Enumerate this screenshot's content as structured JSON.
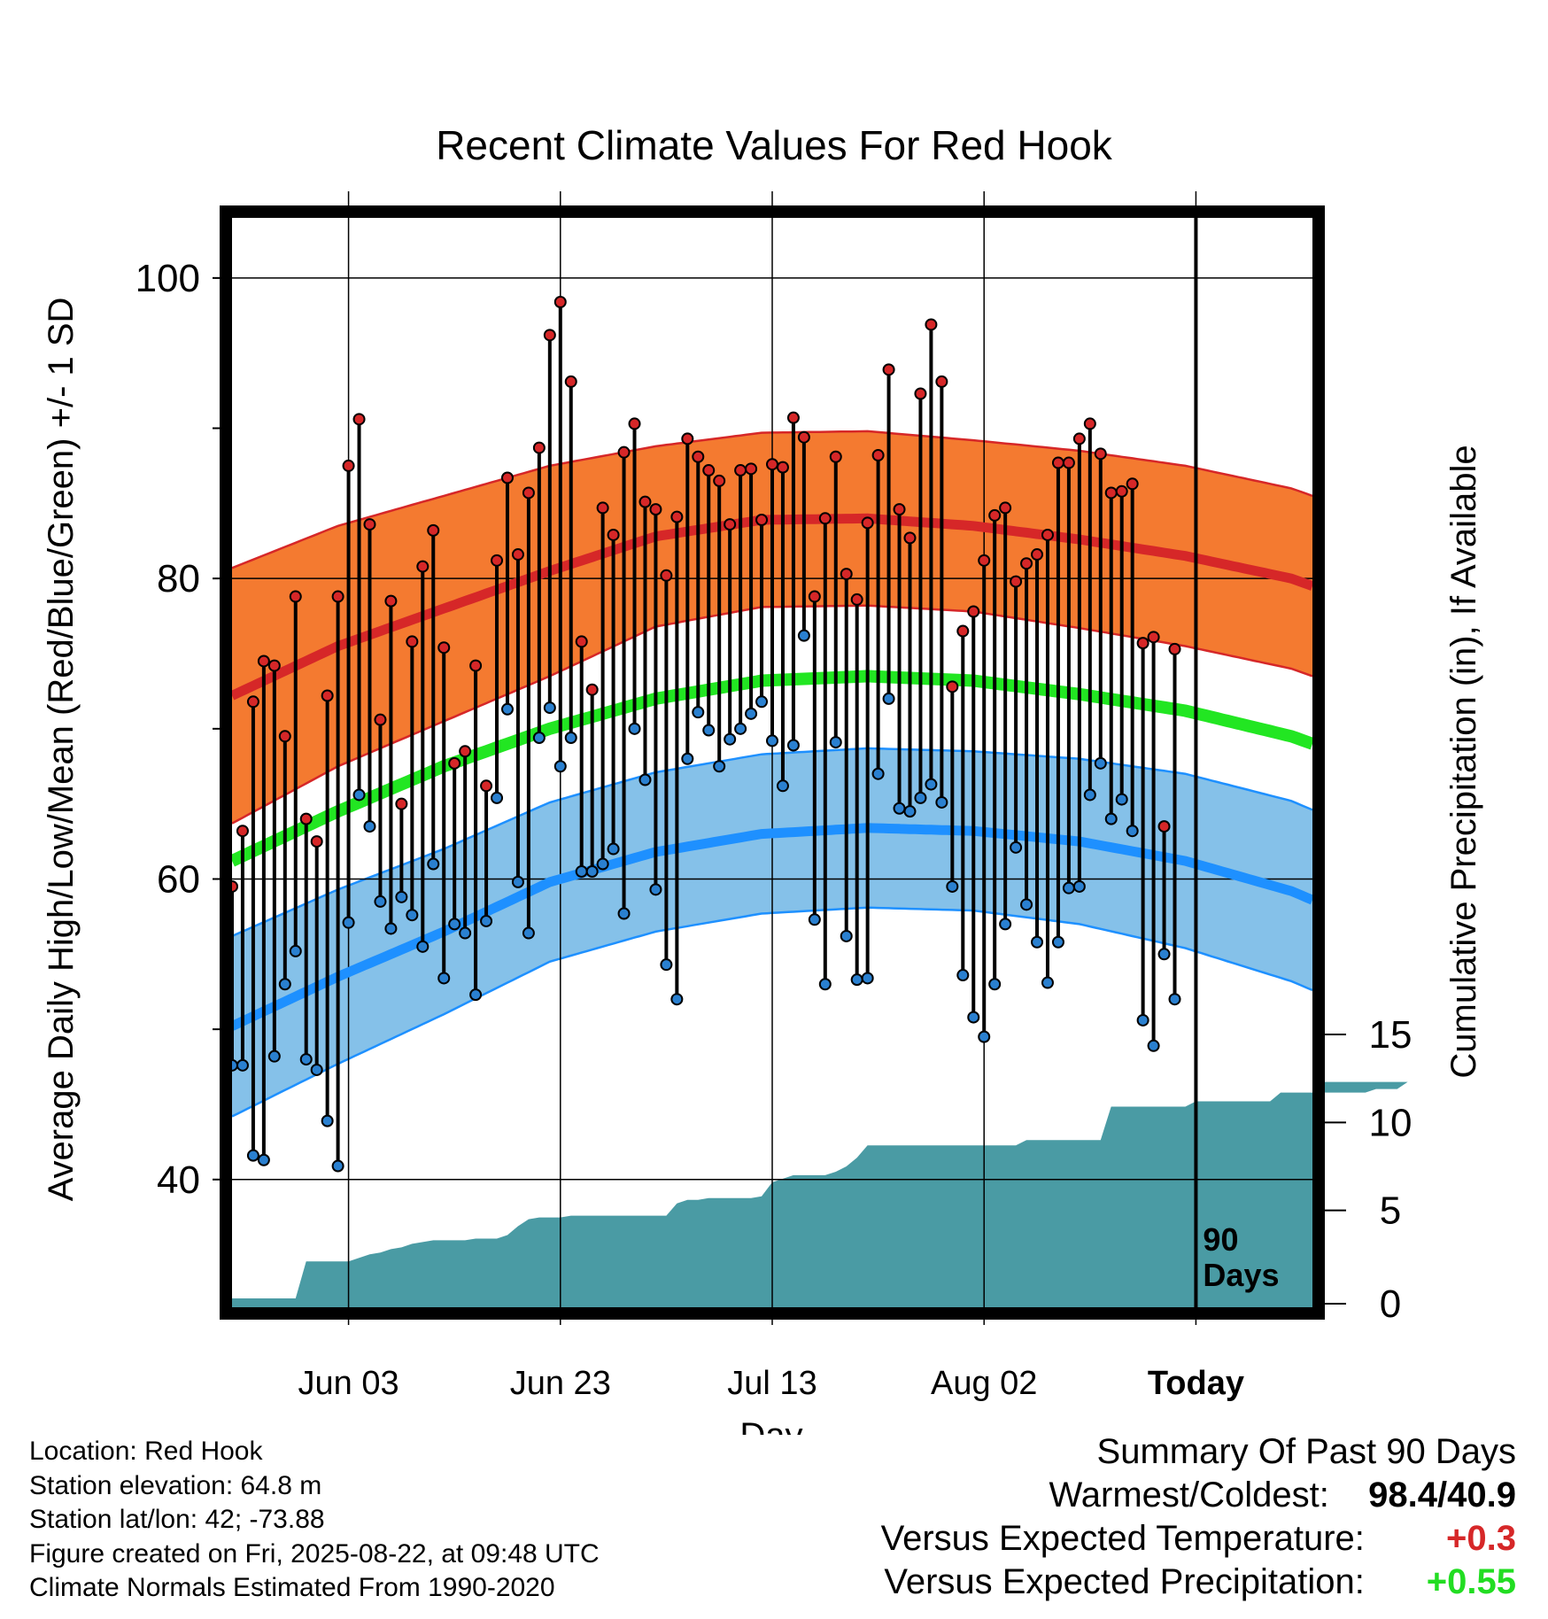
{
  "chart_data": {
    "type": "line",
    "title": "Recent Climate Values For Red Hook",
    "xlabel": "Day",
    "ylabel": "Average Daily High/Low/Mean (Red/Blue/Green) +/- 1 SD",
    "y2label": "Cumulative Precipitation (in), If Available",
    "x_start": "2025-05-23",
    "x_end": "2025-09-02",
    "today": "2025-08-22",
    "today_label": "Today",
    "window_label": [
      "90",
      "Days"
    ],
    "x_ticks": [
      {
        "date": "2025-06-03",
        "label": "Jun 03"
      },
      {
        "date": "2025-06-23",
        "label": "Jun 23"
      },
      {
        "date": "2025-07-13",
        "label": "Jul 13"
      },
      {
        "date": "2025-08-02",
        "label": "Aug 02"
      },
      {
        "date": "2025-08-22",
        "label": "Today"
      }
    ],
    "ylim": [
      31.5,
      104
    ],
    "y_ticks": [
      40,
      60,
      80,
      100
    ],
    "y_minor_ticks": [
      50,
      70,
      90
    ],
    "y2lim": [
      0,
      60
    ],
    "y2_ticks": [
      0,
      5,
      10,
      15
    ],
    "grid": true,
    "colors": {
      "high": "#d62728",
      "high_band": "#f47a30",
      "low": "#1e90ff",
      "low_band": "#85c1e9",
      "mean": "#22e622",
      "precip": "#4a9ba4",
      "high_dot": "#d62728",
      "low_dot": "#2a80d0"
    },
    "normals": {
      "dates": [
        "2025-05-23",
        "2025-06-02",
        "2025-06-12",
        "2025-06-22",
        "2025-07-02",
        "2025-07-12",
        "2025-07-22",
        "2025-08-01",
        "2025-08-11",
        "2025-08-21",
        "2025-08-31",
        "2025-09-02"
      ],
      "high": [
        72.2,
        75.5,
        78.0,
        80.5,
        82.8,
        83.9,
        84.0,
        83.5,
        82.6,
        81.5,
        80.0,
        79.5
      ],
      "high_sd": [
        8.5,
        8.0,
        7.5,
        7.0,
        6.0,
        5.8,
        5.8,
        5.7,
        5.9,
        6.0,
        6.0,
        6.0
      ],
      "mean": [
        61.2,
        64.5,
        67.5,
        70.0,
        72.0,
        73.2,
        73.5,
        73.2,
        72.3,
        71.2,
        69.5,
        69.0
      ],
      "low": [
        50.2,
        53.5,
        56.5,
        59.8,
        61.8,
        63.0,
        63.4,
        63.2,
        62.5,
        61.2,
        59.2,
        58.6
      ],
      "low_sd": [
        6.0,
        5.8,
        5.5,
        5.3,
        5.3,
        5.3,
        5.3,
        5.3,
        5.5,
        5.8,
        6.0,
        6.0
      ]
    },
    "daily": {
      "start": "2025-05-23",
      "end": "2025-08-21",
      "high": [
        59.5,
        63.2,
        71.8,
        74.5,
        74.2,
        69.5,
        78.8,
        64.0,
        62.5,
        72.2,
        78.8,
        87.5,
        90.6,
        83.6,
        70.6,
        78.5,
        65.0,
        75.8,
        80.8,
        83.2,
        75.4,
        67.7,
        68.5,
        74.2,
        66.2,
        81.2,
        86.7,
        81.6,
        85.7,
        88.7,
        96.2,
        98.4,
        93.1,
        75.8,
        72.6,
        84.7,
        82.9,
        88.4,
        90.3,
        85.1,
        84.6,
        80.2,
        84.1,
        89.3,
        88.1,
        87.2,
        86.5,
        83.6,
        87.2,
        87.3,
        83.9,
        87.6,
        87.4,
        90.7,
        89.4,
        78.8,
        84.0,
        88.1,
        80.3,
        78.6,
        83.7,
        88.2,
        93.9,
        84.6,
        82.7,
        92.3,
        96.9,
        93.1,
        72.8,
        76.5,
        77.8,
        81.2,
        84.2,
        84.7,
        79.8,
        81.0,
        81.6,
        82.9,
        87.7,
        87.7,
        89.3,
        90.3,
        88.3,
        85.7,
        85.8,
        86.3,
        75.7,
        76.1,
        63.5,
        75.3
      ],
      "low": [
        47.6,
        47.6,
        41.6,
        41.3,
        48.2,
        53.0,
        55.2,
        48.0,
        47.3,
        43.9,
        40.9,
        57.1,
        65.6,
        63.5,
        58.5,
        56.7,
        58.8,
        57.6,
        55.5,
        61.0,
        53.4,
        57.0,
        56.4,
        52.3,
        57.2,
        65.4,
        71.3,
        59.8,
        56.4,
        69.4,
        71.4,
        67.5,
        69.4,
        60.5,
        60.5,
        61.0,
        62.0,
        57.7,
        70.0,
        66.6,
        59.3,
        54.3,
        52.0,
        68.0,
        71.1,
        69.9,
        67.5,
        69.3,
        70.0,
        71.0,
        71.8,
        69.2,
        66.2,
        68.9,
        76.2,
        57.3,
        53.0,
        69.1,
        56.2,
        53.3,
        53.4,
        67.0,
        72.0,
        64.7,
        64.5,
        65.4,
        66.3,
        65.1,
        59.5,
        53.6,
        50.8,
        49.5,
        53.0,
        57.0,
        62.1,
        58.3,
        55.8,
        53.1,
        55.8,
        59.4,
        59.5,
        65.6,
        67.7,
        64.0,
        65.3,
        63.2,
        50.6,
        48.9,
        55.0,
        52.0
      ]
    },
    "precip_cumulative": {
      "start": "2025-05-23",
      "end": "2025-09-02",
      "values": [
        0,
        0,
        0,
        0,
        0,
        0,
        0,
        2.1,
        2.1,
        2.1,
        2.1,
        2.1,
        2.3,
        2.5,
        2.6,
        2.8,
        2.9,
        3.1,
        3.2,
        3.3,
        3.3,
        3.3,
        3.3,
        3.4,
        3.4,
        3.4,
        3.6,
        4.1,
        4.5,
        4.6,
        4.6,
        4.6,
        4.7,
        4.7,
        4.7,
        4.7,
        4.7,
        4.7,
        4.7,
        4.7,
        4.7,
        4.7,
        5.4,
        5.6,
        5.6,
        5.7,
        5.7,
        5.7,
        5.7,
        5.7,
        5.8,
        6.6,
        6.8,
        7.0,
        7.0,
        7.0,
        7.0,
        7.2,
        7.5,
        8.0,
        8.7,
        8.7,
        8.7,
        8.7,
        8.7,
        8.7,
        8.7,
        8.7,
        8.7,
        8.7,
        8.7,
        8.7,
        8.7,
        8.7,
        8.7,
        9.0,
        9.0,
        9.0,
        9.0,
        9.0,
        9.0,
        9.0,
        9.0,
        10.9,
        10.9,
        10.9,
        10.9,
        10.9,
        10.9,
        10.9,
        10.9,
        11.2,
        11.2,
        11.2,
        11.2,
        11.2,
        11.2,
        11.2,
        11.2,
        11.7,
        11.7,
        11.7,
        11.7,
        11.7,
        11.7,
        11.7,
        11.7,
        11.7,
        11.9,
        11.9,
        11.9,
        12.3,
        12.3,
        12.3,
        12.3,
        12.3,
        12.3,
        12.3,
        12.3,
        12.3,
        12.3,
        12.3,
        12.3,
        12.3,
        12.3,
        12.3
      ]
    }
  },
  "info": {
    "location": "Location: Red Hook",
    "elevation": "Station elevation: 64.8 m",
    "latlon": "Station lat/lon: 42; -73.88",
    "created": "Figure created on Fri, 2025-08-22, at 09:48 UTC",
    "normals": "Climate Normals Estimated From 1990-2020"
  },
  "summary": {
    "heading": "Summary Of Past 90 Days",
    "warmest_coldest_label": "Warmest/Coldest:",
    "warmest_coldest_value": "98.4/40.9",
    "temp_label": "Versus Expected Temperature:",
    "temp_value": "+0.3",
    "temp_color": "#d62728",
    "precip_label": "Versus Expected Precipitation:",
    "precip_value": "+0.55",
    "precip_color": "#22dd22"
  }
}
